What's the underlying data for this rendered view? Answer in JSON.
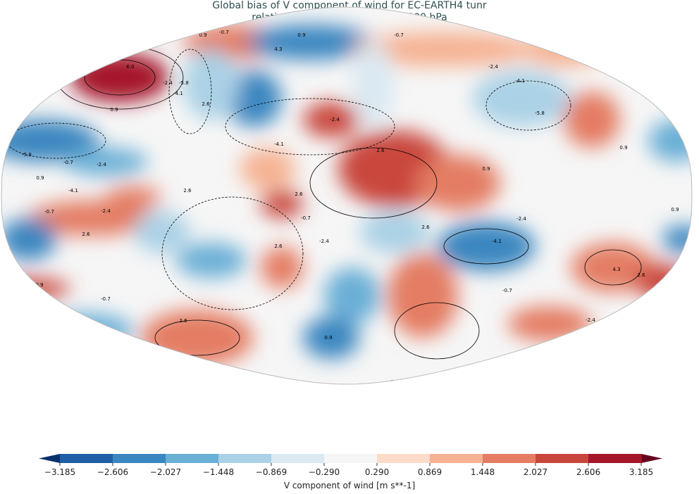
{
  "title_line1": "Global bias of V component of wind for EC-EARTH4 tunr",
  "title_line2": "relative to ERA5 climatology at 200 hPa",
  "colorbar": {
    "label": "V component of wind [m s**-1]",
    "ticks": [
      "−3.185",
      "−2.606",
      "−2.027",
      "−1.448",
      "−0.869",
      "−0.290",
      "0.290",
      "0.869",
      "1.448",
      "2.027",
      "2.606",
      "3.185"
    ],
    "colors": [
      "#1f5fa6",
      "#3a86c0",
      "#6aafd6",
      "#aad1e6",
      "#dae9f2",
      "#f6f6f6",
      "#fcdbc8",
      "#f6b293",
      "#e47d63",
      "#c9463d",
      "#a6162b"
    ],
    "extend_low_color": "#08306b",
    "extend_high_color": "#67001f"
  },
  "contour_labels": [
    "0.9",
    "-0.7",
    "0.9",
    "-0.7",
    "4.3",
    "-2.4",
    "6.0",
    "-4.1",
    "-5.8",
    "2.6",
    "0.9",
    "-4.1",
    "-2.4",
    "-5.8",
    "-0.7",
    "0.9",
    "-4.1",
    "-2.4",
    "2.6",
    "2.6",
    "2.6",
    "-0.7",
    "2.6",
    "0.9",
    "-0.7",
    "-2.4",
    "2.6",
    "2.6",
    "-2.4",
    "-4.1",
    "4.3",
    "2.6",
    "0.9",
    "-0.7",
    "2.6",
    "-2.4",
    "-0.7",
    "-0.7",
    "0.9",
    "-4.1",
    "-2.4",
    "-0.7",
    "0.9",
    "-5.8",
    "-4.1",
    "-2.4",
    "0.9",
    "0.9"
  ],
  "map_projection": "robinson"
}
